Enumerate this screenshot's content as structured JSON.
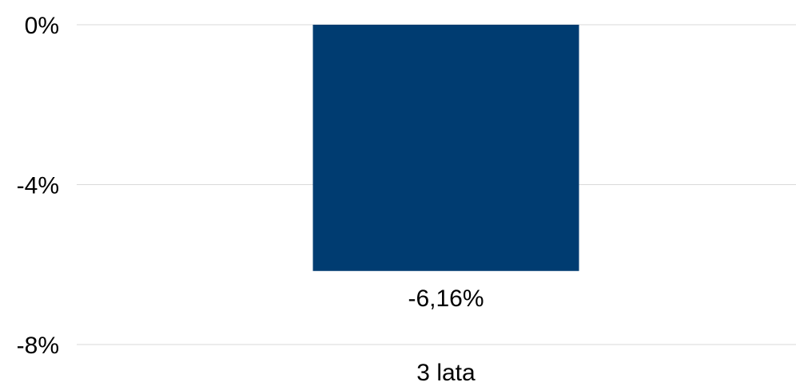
{
  "chart_data": {
    "type": "bar",
    "categories": [
      "3 lata"
    ],
    "values": [
      -6.16
    ],
    "data_labels": [
      "-6,16%"
    ],
    "y_ticks": [
      0,
      -4,
      -8
    ],
    "y_tick_labels": [
      "0%",
      "-4%",
      "-8%"
    ],
    "ylim": [
      -8,
      0
    ],
    "grid": true,
    "legend": "none",
    "colors": {
      "bar": "#003C71",
      "grid": "#D9D9D9",
      "text": "#000000"
    }
  }
}
